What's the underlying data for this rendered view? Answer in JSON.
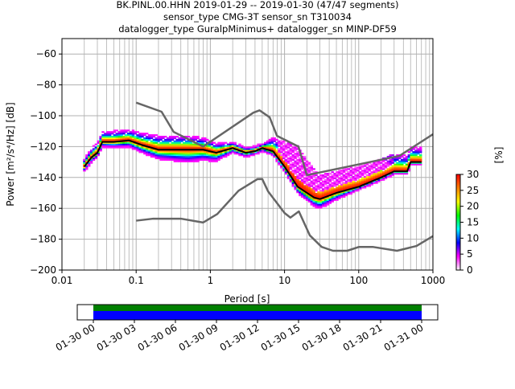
{
  "chart_data": {
    "type": "heatmap",
    "title_lines": [
      "BK.PINL.00.HHN   2019-01-29 -- 2019-01-30  (47/47 segments)",
      "sensor_type CMG-3T sensor_sn T310034",
      "datalogger_type GuralpMinimus+ datalogger_sn MINP-DF59"
    ],
    "xlabel": "Period [s]",
    "ylabel": "Power [m²/s⁴/Hz] [dB]",
    "xscale": "log",
    "xlim": [
      0.01,
      1000
    ],
    "ylim": [
      -200,
      -50
    ],
    "xticks": [
      0.01,
      0.1,
      1,
      10,
      100,
      1000
    ],
    "xtick_labels": [
      "0.01",
      "0.1",
      "1",
      "10",
      "100",
      "1000"
    ],
    "yticks": [
      -200,
      -180,
      -160,
      -140,
      -120,
      -100,
      -80,
      -60
    ],
    "ytick_labels": [
      "−200",
      "−180",
      "−160",
      "−140",
      "−120",
      "−100",
      "−80",
      "−60"
    ],
    "grid": true,
    "mode_line": {
      "period": [
        0.02,
        0.025,
        0.03,
        0.035,
        0.05,
        0.08,
        0.12,
        0.2,
        0.4,
        0.8,
        1.2,
        2,
        3,
        4,
        5,
        7,
        10,
        15,
        25,
        30,
        50,
        100,
        200,
        300,
        450,
        500,
        700
      ],
      "db": [
        -133,
        -127,
        -124,
        -117,
        -117,
        -116,
        -119,
        -122,
        -122,
        -122,
        -124,
        -121,
        -124,
        -123,
        -121,
        -123,
        -133,
        -146,
        -153,
        -154,
        -150,
        -146,
        -140,
        -136,
        -136,
        -130,
        -130
      ]
    },
    "histogram_spread_db": {
      "period": [
        0.02,
        0.035,
        0.08,
        0.2,
        0.5,
        1,
        2,
        5,
        8,
        15,
        30,
        100,
        300,
        700
      ],
      "upper": [
        4,
        6,
        6,
        8,
        8,
        6,
        3,
        2,
        10,
        25,
        14,
        12,
        10,
        8
      ],
      "lower": [
        3,
        3,
        4,
        6,
        8,
        6,
        3,
        2,
        3,
        4,
        6,
        2,
        2,
        2
      ]
    },
    "nhnm": {
      "period": [
        0.1,
        0.22,
        0.32,
        0.8,
        3.8,
        4.6,
        6.3,
        7.9,
        15.4,
        20,
        354,
        1000
      ],
      "db": [
        -91.5,
        -97.4,
        -110.5,
        -120,
        -98,
        -96.5,
        -101,
        -113,
        -120,
        -138.5,
        -126,
        -112
      ]
    },
    "nlnm": {
      "period": [
        0.1,
        0.17,
        0.4,
        0.8,
        1.24,
        2.4,
        4.3,
        5,
        6,
        10,
        12,
        15.6,
        21.9,
        31.6,
        45,
        70,
        101,
        154,
        328,
        600,
        1000
      ],
      "db": [
        -168,
        -166.7,
        -166.7,
        -169.2,
        -163.7,
        -148.6,
        -141.1,
        -141,
        -149,
        -163,
        -166,
        -162,
        -177.5,
        -185,
        -187.5,
        -187.5,
        -185,
        -185,
        -187.5,
        -184.4,
        -178
      ]
    },
    "colorbar": {
      "label": "[%]",
      "range": [
        0,
        30
      ],
      "ticks": [
        "0",
        "5",
        "10",
        "15",
        "20",
        "25",
        "30"
      ],
      "colors": [
        "#ffffff",
        "#ff00ff",
        "#0000ff",
        "#00ffff",
        "#00ff00",
        "#ffff00",
        "#ff8000",
        "#ff0000"
      ]
    },
    "coverage": {
      "tick_labels": [
        "01-30 00",
        "01-30 03",
        "01-30 06",
        "01-30 09",
        "01-30 12",
        "01-30 15",
        "01-30 18",
        "01-30 21",
        "01-31 00"
      ],
      "data_color": "#0000ff",
      "processed_color": "#008000",
      "covered_fraction": [
        0,
        1
      ]
    },
    "line_colors": {
      "mode": "#000000",
      "noise_models": "#666666"
    }
  }
}
